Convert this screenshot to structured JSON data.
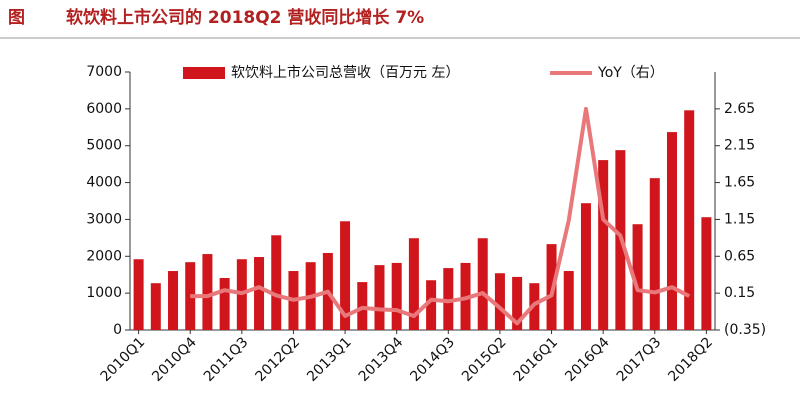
{
  "fig_label": "图",
  "chart_data": {
    "type": "bar_line",
    "title": "软饮料上市公司的 2018Q2 营收同比增长 7%",
    "categories": [
      "2010Q1",
      null,
      null,
      "2010Q4",
      null,
      null,
      "2011Q3",
      null,
      null,
      "2012Q2",
      null,
      null,
      "2013Q1",
      null,
      null,
      "2013Q4",
      null,
      null,
      "2014Q3",
      null,
      null,
      "2015Q2",
      null,
      null,
      "2016Q1",
      null,
      null,
      "2016Q4",
      null,
      null,
      "2017Q3",
      null,
      null,
      "2018Q2"
    ],
    "series": [
      {
        "name": "软饮料上市公司总营收（百万元 左）",
        "type": "bar",
        "color": "#d0161c",
        "values": [
          1920,
          1270,
          1600,
          1840,
          2060,
          1410,
          1920,
          1980,
          2570,
          1600,
          1840,
          2090,
          2950,
          1300,
          1760,
          1820,
          2490,
          1350,
          1680,
          1820,
          2490,
          1540,
          1440,
          1270,
          2330,
          1600,
          3440,
          4610,
          4880,
          2870,
          4120,
          5370,
          5960,
          3060
        ]
      },
      {
        "name": "YoY（右）",
        "type": "line",
        "axis": "y2",
        "color": "#e9787a",
        "values": [
          null,
          null,
          null,
          0.11,
          0.11,
          0.19,
          0.15,
          0.23,
          0.12,
          0.06,
          0.1,
          0.17,
          -0.16,
          -0.05,
          -0.07,
          -0.08,
          -0.16,
          0.06,
          0.04,
          0.08,
          0.15,
          -0.05,
          -0.26,
          0.0,
          0.12,
          1.14,
          2.65,
          1.15,
          0.93,
          0.19,
          0.16,
          0.23,
          0.11,
          null
        ]
      }
    ],
    "ylim": [
      0,
      7000
    ],
    "yticks": [
      0,
      1000,
      2000,
      3000,
      4000,
      5000,
      6000,
      7000
    ],
    "y2lim": [
      -0.35,
      3.15
    ],
    "y2ticks": [
      {
        "value": -0.35,
        "label": "(0.35)"
      },
      0.15,
      0.65,
      1.15,
      1.65,
      2.15,
      2.65
    ],
    "grid": false
  }
}
